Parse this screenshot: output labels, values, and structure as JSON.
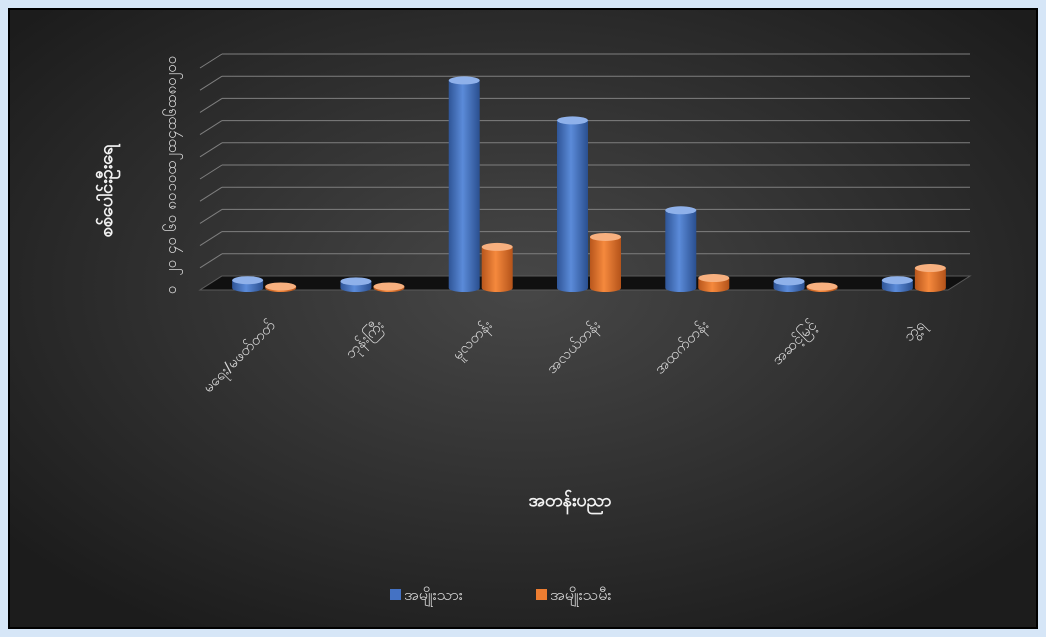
{
  "chart_data": {
    "type": "bar",
    "title": "",
    "xlabel": "အတန်းပညာ",
    "ylabel": "စစ်ပေါင်းဦးရေ",
    "categories": [
      "မရေး/မဖတ်တတ်",
      "ဘုန်းကြီး",
      "မူလတန်း",
      "အလယ်တန်း",
      "အထက်တန်း",
      "အဆင့်မြင့်",
      "ဘွဲ့ရ"
    ],
    "y_tick_labels": [
      "၀",
      "၂၀",
      "၄၀",
      "၆၀",
      "၈၀",
      "၁၀၀",
      "၁၂၀",
      "၁၄၀",
      "၁၆၀",
      "၁၈၀",
      "၂၀၀"
    ],
    "ylim": [
      0,
      200
    ],
    "series": [
      {
        "name": "အမျိုးသား",
        "color": "#4472c4",
        "values": [
          7,
          6,
          187,
          151,
          70,
          6,
          7
        ]
      },
      {
        "name": "အမျိုးသမီး",
        "color": "#ed7d31",
        "values": [
          0,
          0,
          37,
          46,
          9,
          0,
          18
        ]
      }
    ],
    "grid": true,
    "legend": "bottom"
  },
  "colors": {
    "page_background": "#d6e6f7",
    "chart_background": "#000000",
    "gridline": "#7f7f7f",
    "text": "#d9d9d9"
  }
}
